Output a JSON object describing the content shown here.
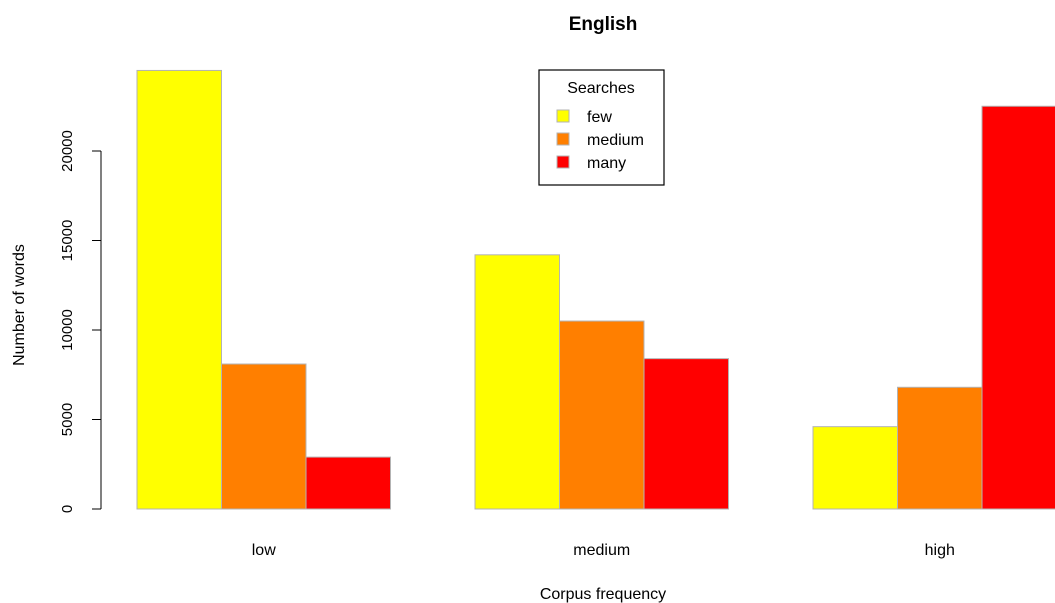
{
  "chart_data": {
    "type": "bar",
    "title": "English",
    "xlabel": "Corpus frequency",
    "ylabel": "Number of words",
    "categories": [
      "low",
      "medium",
      "high"
    ],
    "series": [
      {
        "name": "few",
        "color": "#ffff00",
        "values": [
          24500,
          14200,
          4600
        ]
      },
      {
        "name": "medium",
        "color": "#ff7f00",
        "values": [
          8100,
          10500,
          6800
        ]
      },
      {
        "name": "many",
        "color": "#ff0000",
        "values": [
          2900,
          8400,
          22500
        ]
      }
    ],
    "yticks": [
      "0",
      "5000",
      "10000",
      "15000",
      "20000"
    ],
    "ylim": [
      0,
      25000
    ],
    "legend": {
      "title": "Searches",
      "position": "top-center"
    },
    "grid": false
  }
}
